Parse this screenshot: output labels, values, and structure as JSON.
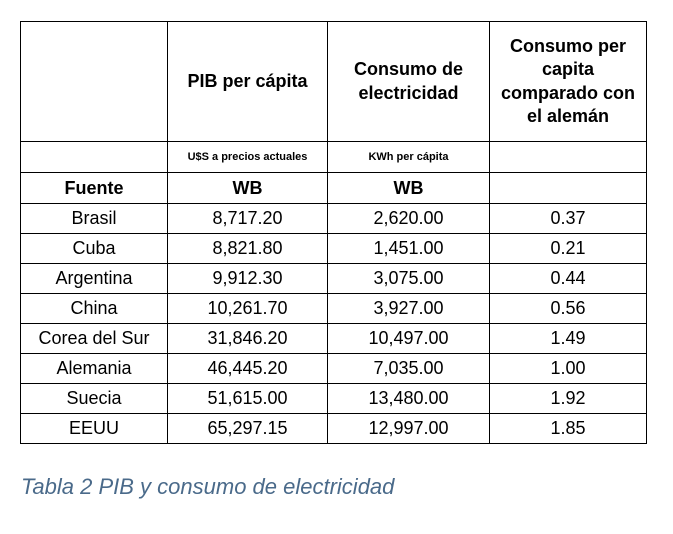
{
  "table": {
    "headers": {
      "pib": "PIB per cápita",
      "consumo_line1": "Consumo de",
      "consumo_line2": "electricidad",
      "comparado_line1": "Consumo per",
      "comparado_line2": "capita",
      "comparado_line3": "comparado con",
      "comparado_line4": "el alemán"
    },
    "units": {
      "pib": "U$S a precios actuales",
      "consumo": "KWh per cápita"
    },
    "source": {
      "label": "Fuente",
      "pib": "WB",
      "consumo": "WB"
    },
    "rows": [
      {
        "country": "Brasil",
        "pib": "8,717.20",
        "consumo": "2,620.00",
        "ratio": "0.37"
      },
      {
        "country": "Cuba",
        "pib": "8,821.80",
        "consumo": "1,451.00",
        "ratio": "0.21"
      },
      {
        "country": "Argentina",
        "pib": "9,912.30",
        "consumo": "3,075.00",
        "ratio": "0.44"
      },
      {
        "country": "China",
        "pib": "10,261.70",
        "consumo": "3,927.00",
        "ratio": "0.56"
      },
      {
        "country": "Corea del Sur",
        "pib": "31,846.20",
        "consumo": "10,497.00",
        "ratio": "1.49"
      },
      {
        "country": "Alemania",
        "pib": "46,445.20",
        "consumo": "7,035.00",
        "ratio": "1.00"
      },
      {
        "country": "Suecia",
        "pib": "51,615.00",
        "consumo": "13,480.00",
        "ratio": "1.92"
      },
      {
        "country": "EEUU",
        "pib": "65,297.15",
        "consumo": "12,997.00",
        "ratio": "1.85"
      }
    ]
  },
  "caption": "Tabla 2 PIB y consumo de electricidad",
  "colors": {
    "caption": "#4a6a8a",
    "border": "#000000"
  }
}
